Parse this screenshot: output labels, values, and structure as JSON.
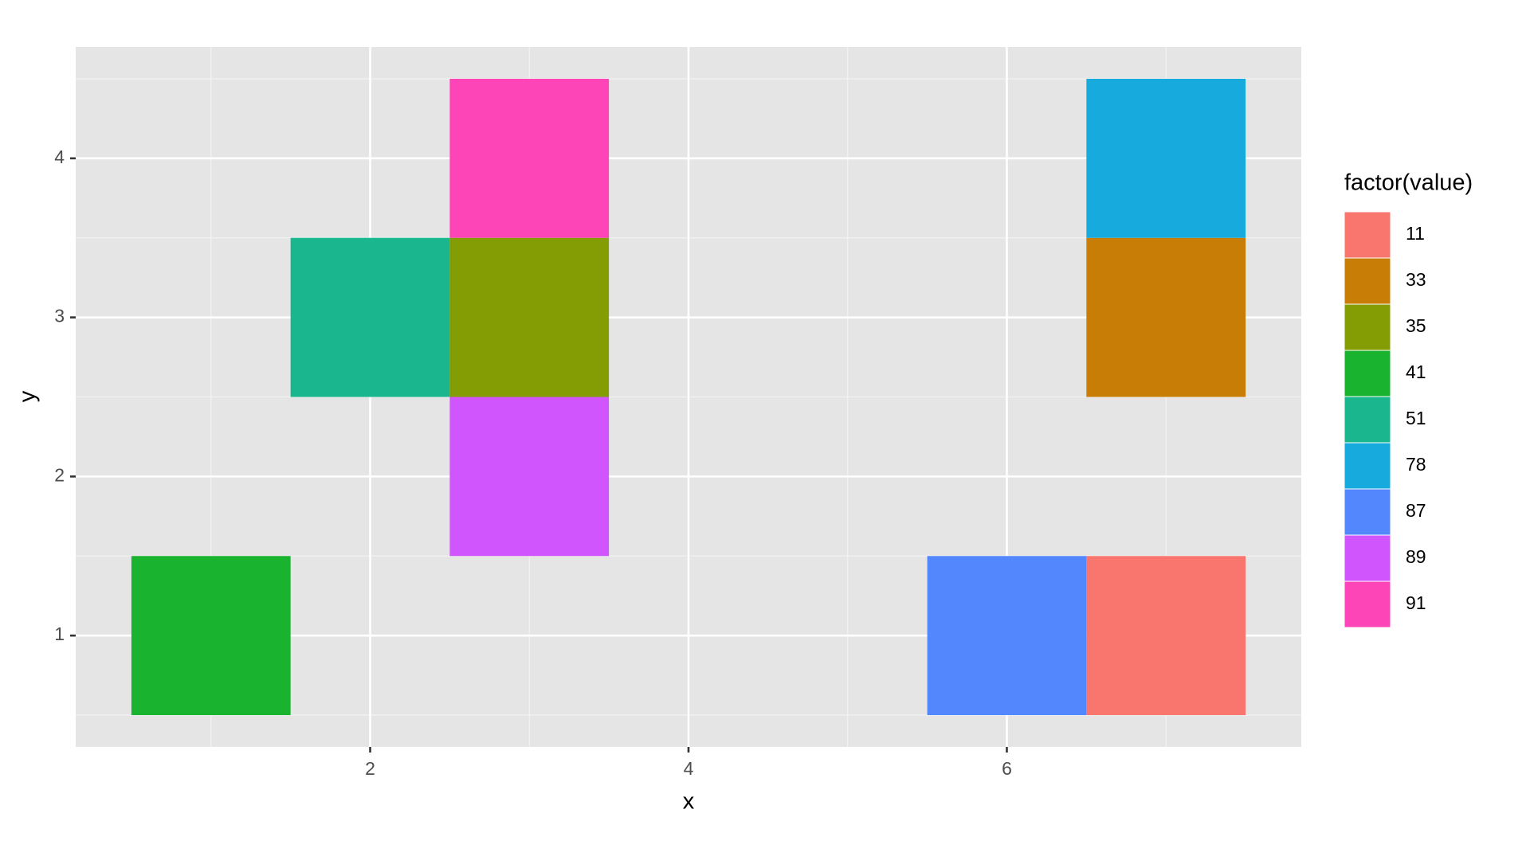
{
  "chart_data": {
    "type": "tile",
    "x_label": "x",
    "y_label": "y",
    "x": [
      1,
      3,
      2,
      3,
      3,
      6,
      7,
      7,
      7
    ],
    "y": [
      1,
      2,
      3,
      3,
      4,
      1,
      1,
      3,
      4
    ],
    "values": [
      41,
      89,
      51,
      35,
      91,
      87,
      11,
      33,
      78
    ],
    "xlim": [
      0.15,
      7.85
    ],
    "ylim": [
      0.3,
      4.7
    ],
    "xticks": [
      2,
      4,
      6
    ],
    "yticks": [
      1,
      2,
      3,
      4
    ],
    "x_minor_grid": [
      1,
      3,
      5,
      7
    ],
    "y_minor_grid": [
      0.5,
      1.5,
      2.5,
      3.5,
      4.5
    ],
    "grid": true,
    "legend": {
      "title": "factor(value)",
      "position": "right",
      "levels": [
        11,
        33,
        35,
        41,
        51,
        78,
        87,
        89,
        91
      ],
      "colors": [
        "#f8766d",
        "#c77d06",
        "#859d04",
        "#19b330",
        "#1ab78f",
        "#17aadd",
        "#5287fe",
        "#d055fc",
        "#fe45b7"
      ]
    }
  }
}
